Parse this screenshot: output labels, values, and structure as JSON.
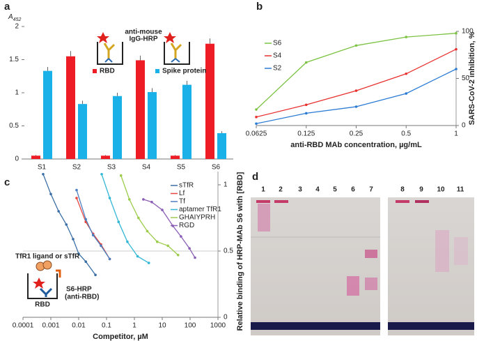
{
  "chart_data": [
    {
      "type": "bar",
      "panel_label": "a",
      "ylabel": "A",
      "ylabel_subscript": "452",
      "annotations": [
        "anti-mouse",
        "IgG-HRP"
      ],
      "categories": [
        "S1",
        "S2",
        "S3",
        "S4",
        "S5",
        "S6"
      ],
      "series": [
        {
          "name": "RBD",
          "color": "#ee1c25",
          "values": [
            0.05,
            1.55,
            0.05,
            1.49,
            0.05,
            1.74
          ],
          "errors": [
            0.01,
            0.08,
            0.01,
            0.07,
            0.01,
            0.08
          ]
        },
        {
          "name": "Spike protein",
          "color": "#1ab0e8",
          "values": [
            1.33,
            0.83,
            0.95,
            1.01,
            1.12,
            0.39
          ],
          "errors": [
            0.06,
            0.05,
            0.05,
            0.06,
            0.06,
            0.03
          ]
        }
      ],
      "ylim": [
        0,
        2
      ],
      "yticks": [
        0,
        0.5,
        1,
        1.5,
        2
      ],
      "y_axis_side": "left",
      "legend": "upper center"
    },
    {
      "type": "line",
      "panel_label": "b",
      "xlabel": "anti-RBD MAb concentration, µg/mL",
      "ylabel": "SARS-CoV-2 inhibition, %",
      "x": [
        0.0625,
        0.125,
        0.25,
        0.5,
        1
      ],
      "xscale": "log",
      "series": [
        {
          "name": "S6",
          "color": "#7cc243",
          "values": [
            17,
            67,
            85,
            94,
            98
          ]
        },
        {
          "name": "S4",
          "color": "#e8312f",
          "values": [
            9,
            22,
            37,
            55,
            81
          ]
        },
        {
          "name": "S2",
          "color": "#2a7bd4",
          "values": [
            2,
            13,
            20,
            34,
            60
          ]
        }
      ],
      "xlim": [
        0.0625,
        1
      ],
      "xticks": [
        0.0625,
        0.125,
        0.25,
        0.5,
        1
      ],
      "ylim": [
        0,
        100
      ],
      "yticks": [
        0,
        50,
        100
      ],
      "y_axis_side": "right",
      "legend": "upper left"
    },
    {
      "type": "line",
      "panel_label": "c",
      "xlabel": "Competitor, µM",
      "ylabel": "Relative binding of HRP-MAb S6 with [RBD]",
      "annotations": [
        "TfR1 ligand or sTfR",
        "S6-HRP",
        "(anti-RBD)",
        "RBD"
      ],
      "xscale": "log",
      "series": [
        {
          "name": "sTfR",
          "color": "#3a6ea5",
          "x": [
            0.00053,
            0.001,
            0.0019,
            0.0036,
            0.0063,
            0.01,
            0.018,
            0.04
          ],
          "values": [
            1.08,
            0.93,
            0.8,
            0.7,
            0.59,
            0.48,
            0.42,
            0.32
          ]
        },
        {
          "name": "Lf",
          "color": "#e8453c",
          "x": [
            0.0084,
            0.018,
            0.033,
            0.063,
            0.13
          ],
          "values": [
            0.9,
            0.72,
            0.63,
            0.55,
            0.44
          ]
        },
        {
          "name": "Tf",
          "color": "#4a7fc1",
          "x": [
            0.0084,
            0.018,
            0.033,
            0.063,
            0.13
          ],
          "values": [
            0.96,
            0.74,
            0.62,
            0.54,
            0.44
          ]
        },
        {
          "name": "aptamer TfR1",
          "color": "#33b7d6",
          "x": [
            0.067,
            0.13,
            0.27,
            0.56,
            1.3,
            3.3
          ],
          "values": [
            1.08,
            0.9,
            0.72,
            0.57,
            0.46,
            0.41
          ]
        },
        {
          "name": "GHAIYPRH",
          "color": "#9ccc4a",
          "x": [
            0.33,
            0.66,
            1.4,
            2.9,
            6.6,
            16,
            37
          ],
          "values": [
            1.07,
            0.89,
            0.75,
            0.65,
            0.57,
            0.54,
            0.47
          ]
        },
        {
          "name": "RGD",
          "color": "#8a5fb5",
          "x": [
            2.1,
            4.2,
            10,
            24,
            47,
            95,
            150
          ],
          "values": [
            0.89,
            0.87,
            0.81,
            0.69,
            0.61,
            0.52,
            0.45
          ]
        }
      ],
      "xlim": [
        0.0001,
        1000
      ],
      "xticks": [
        0.0001,
        0.001,
        0.01,
        0.1,
        1,
        10,
        100,
        1000
      ],
      "ylim": [
        0,
        1.1
      ],
      "yticks": [
        0,
        0.5,
        1
      ],
      "y_axis_side": "right",
      "legend": "upper right"
    }
  ],
  "gel": {
    "panel_label": "d",
    "lanes": [
      "1",
      "2",
      "3",
      "4",
      "5",
      "6",
      "7",
      "8",
      "9",
      "10",
      "11"
    ]
  }
}
